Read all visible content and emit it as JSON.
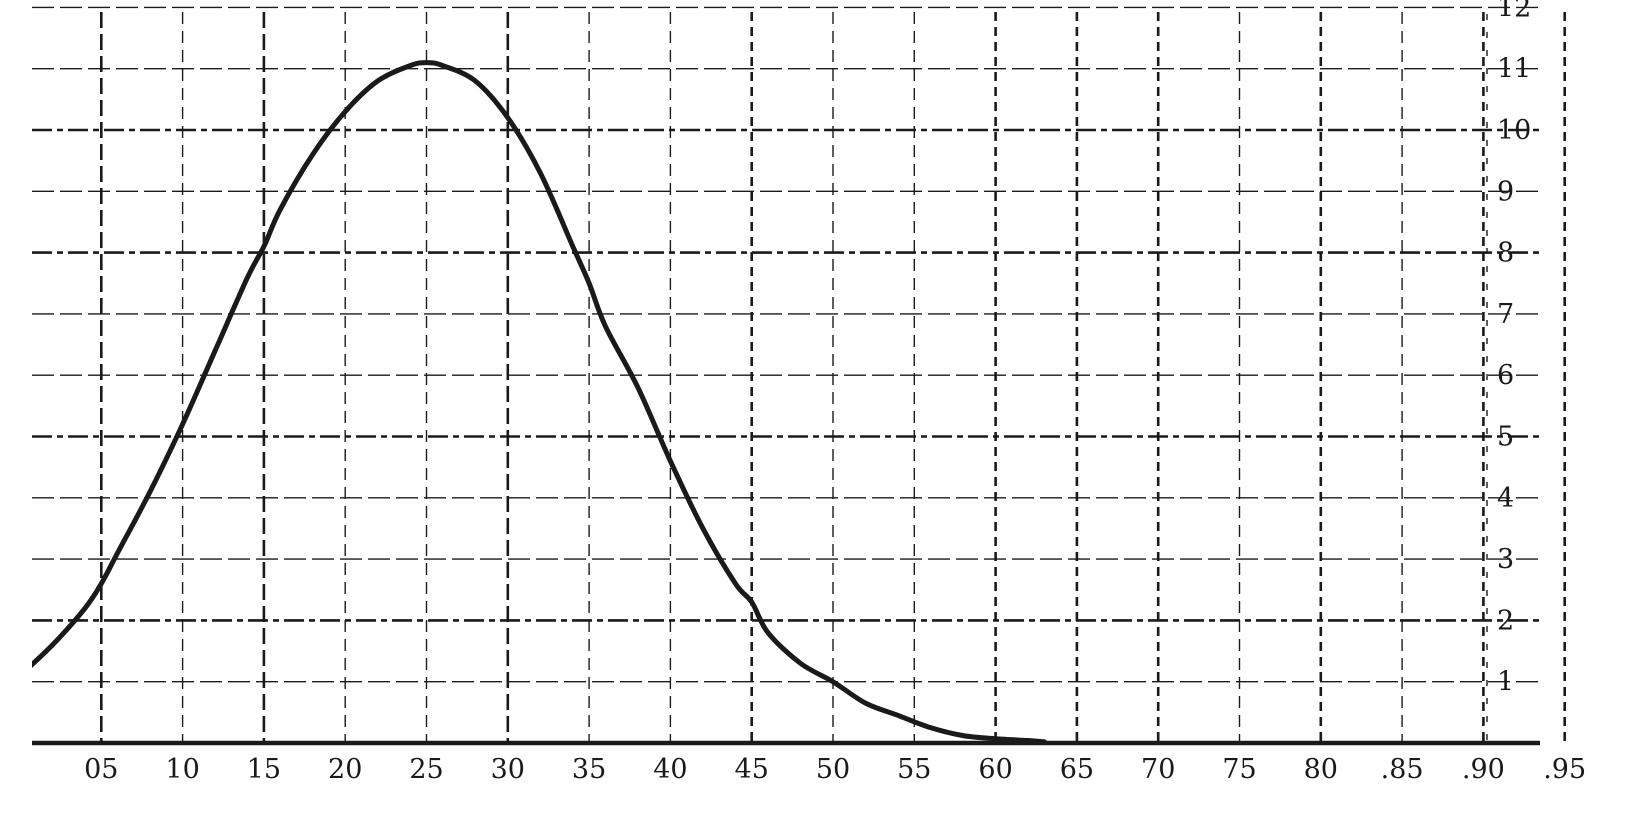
{
  "chart_data": {
    "type": "line",
    "title": "",
    "xlabel": "",
    "ylabel": "",
    "x_ticks": [
      "05",
      "10",
      "15",
      "20",
      "25",
      "30",
      "35",
      "40",
      "45",
      "50",
      "55",
      "60",
      "65",
      "70",
      "75",
      "80",
      ".85",
      ".90",
      ".95"
    ],
    "y_ticks": [
      "1",
      "2",
      "3",
      "4",
      "5",
      "6",
      "7",
      "8",
      "9",
      "10",
      "11",
      "12"
    ],
    "xlim": [
      0,
      100
    ],
    "ylim": [
      0,
      12
    ],
    "grid": true,
    "legend": "none",
    "series": [
      {
        "x": [
          0,
          2,
          4,
          5,
          6,
          8,
          10,
          12,
          14,
          15,
          16,
          18,
          20,
          22,
          24,
          25,
          26,
          28,
          30,
          32,
          34,
          35,
          36,
          38,
          40,
          42,
          44,
          45,
          46,
          48,
          50,
          52,
          54,
          56,
          58,
          60,
          62,
          63
        ],
        "values": [
          1.1,
          1.6,
          2.2,
          2.6,
          3.1,
          4.1,
          5.2,
          6.4,
          7.6,
          8.1,
          8.7,
          9.6,
          10.3,
          10.8,
          11.05,
          11.1,
          11.05,
          10.8,
          10.2,
          9.3,
          8.1,
          7.5,
          6.8,
          5.8,
          4.6,
          3.5,
          2.6,
          2.3,
          1.8,
          1.3,
          1.0,
          0.65,
          0.45,
          0.25,
          0.12,
          0.07,
          0.04,
          0.02
        ],
        "color": "#1a1a1a"
      }
    ],
    "colors": {
      "curve": "#1a1a1a",
      "grid": "#1a1a1a",
      "axis": "#1a1a1a"
    }
  }
}
